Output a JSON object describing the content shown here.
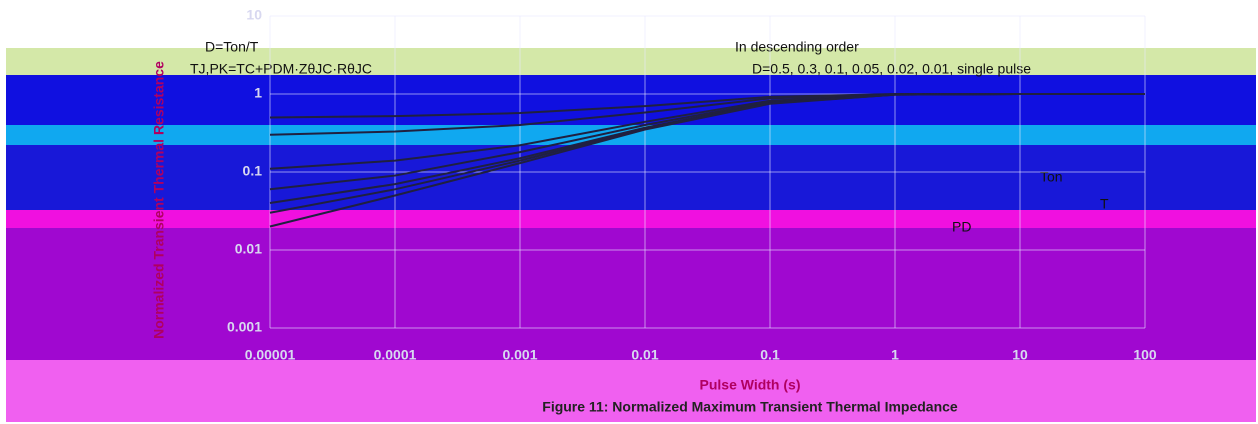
{
  "chart_data": {
    "type": "line",
    "title": "Figure 11: Normalized Maximum Transient Thermal Impedance",
    "x_label": "Pulse Width (s)",
    "y_label": "Normalized Transient Thermal Resistance",
    "annotations": [
      "D=Ton/T",
      "TJ,PK=TC+PDM·ZθJC·RθJC",
      "In descending order",
      "D=0.5, 0.3, 0.1, 0.05, 0.02, 0.01, single pulse",
      "PD",
      "Ton",
      "T"
    ],
    "x": [
      1e-05,
      0.0001,
      0.001,
      0.01,
      0.1,
      1,
      10,
      100
    ],
    "series": [
      {
        "color": "#202040",
        "values": [
          0.5,
          0.52,
          0.57,
          0.7,
          0.92,
          1,
          1,
          1
        ]
      },
      {
        "color": "#202040",
        "values": [
          0.3,
          0.33,
          0.4,
          0.58,
          0.88,
          0.99,
          1,
          1
        ]
      },
      {
        "color": "#202040",
        "values": [
          0.11,
          0.14,
          0.22,
          0.44,
          0.82,
          0.99,
          1,
          1
        ]
      },
      {
        "color": "#202040",
        "values": [
          0.06,
          0.09,
          0.18,
          0.4,
          0.79,
          0.99,
          1,
          1
        ]
      },
      {
        "color": "#202040",
        "values": [
          0.04,
          0.07,
          0.15,
          0.37,
          0.77,
          0.98,
          1,
          1
        ]
      },
      {
        "color": "#202040",
        "values": [
          0.03,
          0.06,
          0.14,
          0.36,
          0.76,
          0.98,
          1,
          1
        ]
      },
      {
        "color": "#202040",
        "values": [
          0.02,
          0.05,
          0.13,
          0.35,
          0.75,
          0.98,
          1,
          1
        ]
      }
    ],
    "xlim": [
      1e-05,
      100
    ],
    "xticks": [
      1e-05,
      0.0001,
      0.001,
      0.01,
      0.1,
      1,
      10,
      100
    ],
    "ylim": [
      0.001,
      10
    ],
    "yticks": [
      0.001,
      0.01,
      0.1,
      1,
      10
    ],
    "xscale": "log",
    "yscale": "log",
    "grid": true
  }
}
